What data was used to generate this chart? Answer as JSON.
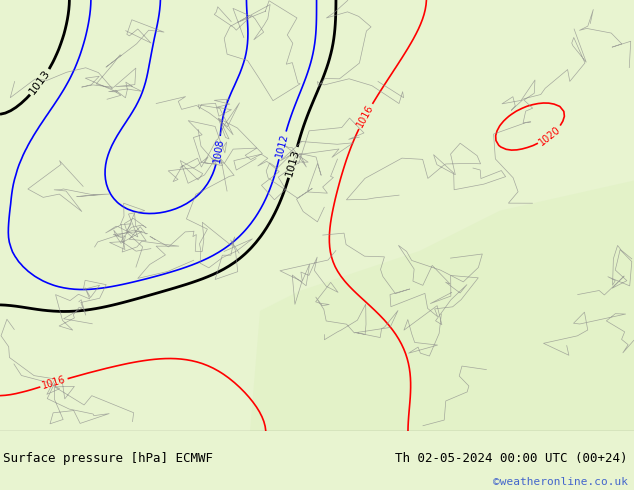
{
  "title_left": "Surface pressure [hPa] ECMWF",
  "title_right": "Th 02-05-2024 00:00 UTC (00+24)",
  "credit": "©weatheronline.co.uk",
  "bg_color": "#c8e6a0",
  "map_bg": "#c8e6a0",
  "border_color": "#000000",
  "bottom_bar_color": "#f0f0f0",
  "bottom_text_color": "#000000",
  "credit_color": "#4466cc",
  "figsize": [
    6.34,
    4.9
  ],
  "dpi": 100
}
